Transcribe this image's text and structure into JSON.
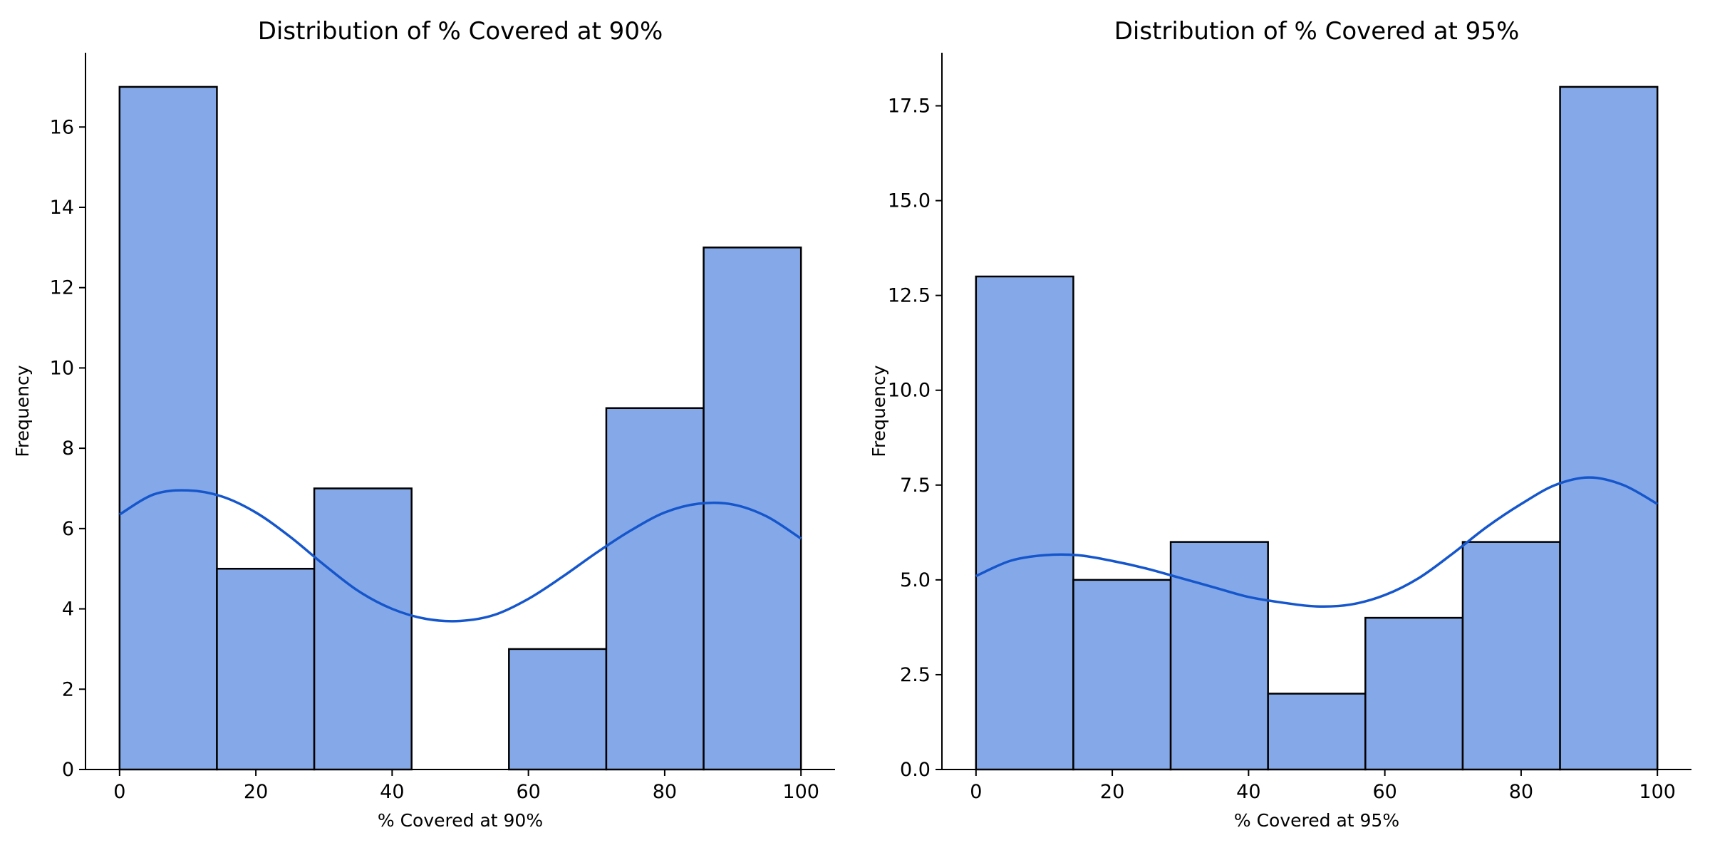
{
  "chart_data": [
    {
      "type": "histogram",
      "title": "Distribution of % Covered at 90%",
      "xlabel": "% Covered at 90%",
      "ylabel": "Frequency",
      "xlim": [
        -5,
        105
      ],
      "ylim": [
        0,
        17.85
      ],
      "xticks": [
        0,
        20,
        40,
        60,
        80,
        100
      ],
      "yticks": [
        0,
        2,
        4,
        6,
        8,
        10,
        12,
        14,
        16
      ],
      "ytick_labels": [
        "0",
        "2",
        "4",
        "6",
        "8",
        "10",
        "12",
        "14",
        "16"
      ],
      "bins": [
        0,
        14.2857,
        28.5714,
        42.8571,
        57.1429,
        71.4286,
        85.7143,
        100
      ],
      "counts": [
        17,
        5,
        7,
        0,
        3,
        9,
        13
      ],
      "kde": {
        "x": [
          0,
          5,
          10,
          15,
          20,
          25,
          30,
          35,
          40,
          45,
          50,
          55,
          60,
          65,
          70,
          75,
          80,
          85,
          90,
          95,
          100
        ],
        "y": [
          6.35,
          6.85,
          6.95,
          6.8,
          6.4,
          5.8,
          5.1,
          4.45,
          4.0,
          3.75,
          3.7,
          3.85,
          4.25,
          4.8,
          5.4,
          5.95,
          6.4,
          6.62,
          6.6,
          6.3,
          5.75
        ]
      },
      "colors": {
        "bar": "#85a9e8",
        "kde": "#1556cc",
        "edge": "#000000"
      }
    },
    {
      "type": "histogram",
      "title": "Distribution of % Covered at 95%",
      "xlabel": "% Covered at 95%",
      "ylabel": "Frequency",
      "xlim": [
        -5,
        105
      ],
      "ylim": [
        0,
        18.9
      ],
      "xticks": [
        0,
        20,
        40,
        60,
        80,
        100
      ],
      "yticks": [
        0,
        2.5,
        5,
        7.5,
        10,
        12.5,
        15,
        17.5
      ],
      "ytick_labels": [
        "0.0",
        "2.5",
        "5.0",
        "7.5",
        "10.0",
        "12.5",
        "15.0",
        "17.5"
      ],
      "bins": [
        0,
        14.2857,
        28.5714,
        42.8571,
        57.1429,
        71.4286,
        85.7143,
        100
      ],
      "counts": [
        13,
        5,
        6,
        2,
        4,
        6,
        18
      ],
      "kde": {
        "x": [
          0,
          5,
          10,
          15,
          20,
          25,
          30,
          35,
          40,
          45,
          50,
          55,
          60,
          65,
          70,
          75,
          80,
          85,
          90,
          95,
          100
        ],
        "y": [
          5.1,
          5.5,
          5.65,
          5.65,
          5.5,
          5.3,
          5.05,
          4.8,
          4.55,
          4.4,
          4.3,
          4.35,
          4.6,
          5.05,
          5.7,
          6.4,
          7.0,
          7.5,
          7.7,
          7.5,
          7.0
        ]
      },
      "colors": {
        "bar": "#85a9e8",
        "kde": "#1556cc",
        "edge": "#000000"
      }
    }
  ]
}
